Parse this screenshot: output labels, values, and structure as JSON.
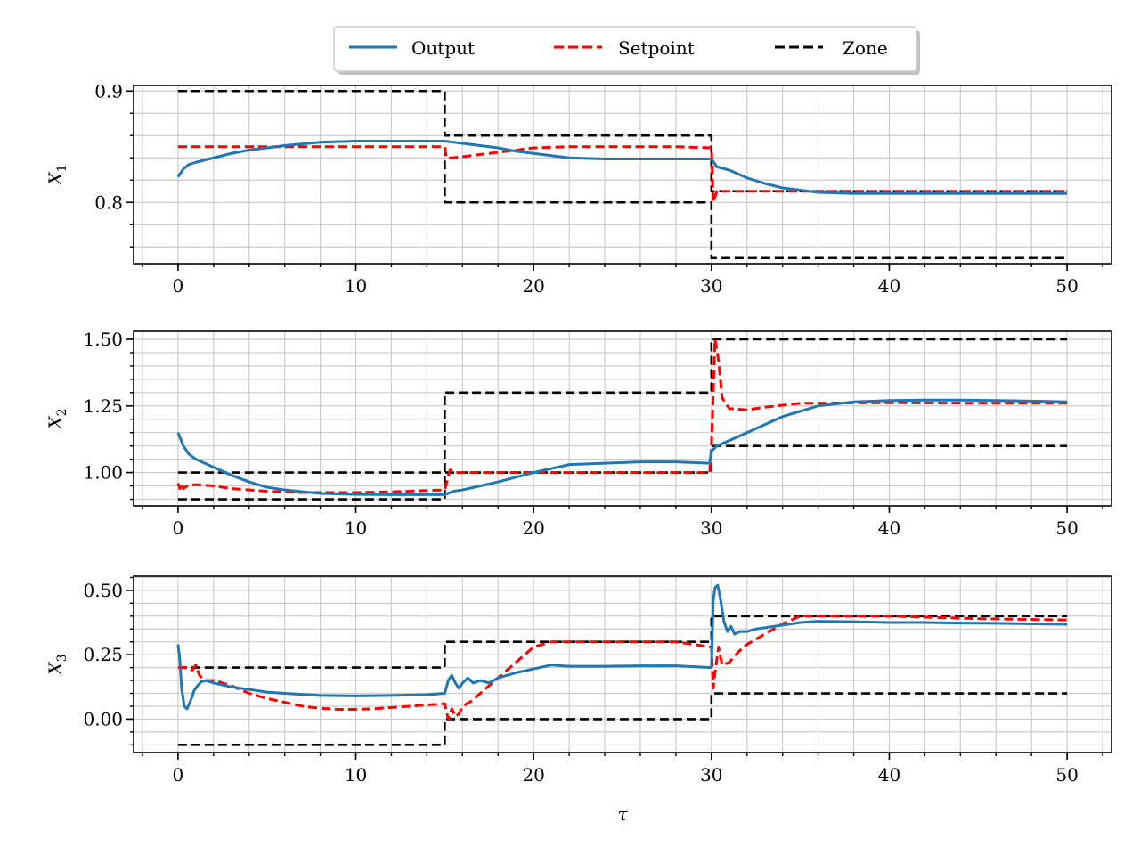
{
  "legend": {
    "placement": "top-center",
    "entries": [
      {
        "label": "Output",
        "color": "#1f77b4",
        "dash": "solid"
      },
      {
        "label": "Setpoint",
        "color": "#ff0000",
        "dash": "dashed"
      },
      {
        "label": "Zone",
        "color": "#000000",
        "dash": "dashed"
      }
    ]
  },
  "chart_data": [
    {
      "type": "line",
      "ylabel_base": "X",
      "ylabel_sub": "1",
      "xlabel": "",
      "xlim": [
        -2.5,
        52.5
      ],
      "ylim": [
        0.745,
        0.905
      ],
      "xticks": [
        0,
        10,
        20,
        30,
        40,
        50
      ],
      "xtick_labels": [
        "0",
        "10",
        "20",
        "30",
        "40",
        "50"
      ],
      "yticks": [
        0.8,
        0.9
      ],
      "ytick_labels": [
        "0.8",
        "0.9"
      ],
      "grid": true,
      "series": [
        {
          "name": "Output",
          "x": [
            0,
            0.3,
            0.6,
            1,
            2,
            3,
            4,
            5,
            6,
            8,
            10,
            12,
            14,
            15,
            15.5,
            16,
            17,
            18,
            19,
            20,
            21,
            22,
            24,
            26,
            28,
            30,
            30.3,
            31,
            32,
            33,
            34,
            35,
            36,
            38,
            40,
            42,
            44,
            46,
            48,
            50
          ],
          "y": [
            0.823,
            0.83,
            0.834,
            0.836,
            0.84,
            0.844,
            0.847,
            0.849,
            0.851,
            0.854,
            0.855,
            0.855,
            0.855,
            0.855,
            0.854,
            0.853,
            0.851,
            0.849,
            0.846,
            0.844,
            0.842,
            0.84,
            0.839,
            0.839,
            0.839,
            0.839,
            0.832,
            0.829,
            0.822,
            0.817,
            0.813,
            0.811,
            0.809,
            0.808,
            0.808,
            0.808,
            0.808,
            0.808,
            0.808,
            0.808
          ]
        },
        {
          "name": "Setpoint",
          "x": [
            0,
            15,
            15.1,
            15.4,
            16,
            18,
            20,
            22,
            24,
            26,
            28,
            30,
            30.1,
            30.3,
            31,
            35,
            40,
            45,
            50
          ],
          "y": [
            0.85,
            0.85,
            0.84,
            0.84,
            0.841,
            0.845,
            0.849,
            0.85,
            0.85,
            0.85,
            0.85,
            0.849,
            0.8,
            0.81,
            0.81,
            0.81,
            0.81,
            0.81,
            0.81
          ]
        },
        {
          "name": "Zone-upper",
          "x": [
            0,
            15,
            15,
            30,
            30,
            50
          ],
          "y": [
            0.9,
            0.9,
            0.86,
            0.86,
            0.81,
            0.81
          ]
        },
        {
          "name": "Zone-lower",
          "x": [
            0,
            15,
            15,
            30,
            30,
            50
          ],
          "y": [
            0.85,
            0.85,
            0.8,
            0.8,
            0.75,
            0.75
          ]
        }
      ]
    },
    {
      "type": "line",
      "ylabel_base": "X",
      "ylabel_sub": "2",
      "xlabel": "",
      "xlim": [
        -2.5,
        52.5
      ],
      "ylim": [
        0.875,
        1.53
      ],
      "xticks": [
        0,
        10,
        20,
        30,
        40,
        50
      ],
      "xtick_labels": [
        "0",
        "10",
        "20",
        "30",
        "40",
        "50"
      ],
      "yticks": [
        1.0,
        1.25,
        1.5
      ],
      "ytick_labels": [
        "1.00",
        "1.25",
        "1.50"
      ],
      "grid": true,
      "series": [
        {
          "name": "Output",
          "x": [
            0,
            0.3,
            0.6,
            1,
            1.5,
            2,
            3,
            4,
            5,
            6,
            7,
            8,
            10,
            12,
            14,
            15,
            15.5,
            16,
            18,
            20,
            22,
            24,
            26,
            28,
            29.9,
            30,
            30.3,
            31,
            32,
            33,
            34,
            35,
            36,
            38,
            40,
            42,
            44,
            46,
            48,
            50
          ],
          "y": [
            1.15,
            1.1,
            1.07,
            1.05,
            1.035,
            1.02,
            0.99,
            0.965,
            0.945,
            0.935,
            0.928,
            0.922,
            0.918,
            0.917,
            0.917,
            0.917,
            0.93,
            0.935,
            0.965,
            1.0,
            1.03,
            1.035,
            1.04,
            1.04,
            1.035,
            1.08,
            1.1,
            1.12,
            1.15,
            1.18,
            1.21,
            1.23,
            1.25,
            1.265,
            1.27,
            1.272,
            1.272,
            1.27,
            1.268,
            1.265
          ]
        },
        {
          "name": "Setpoint",
          "x": [
            0,
            0.1,
            0.2,
            0.3,
            0.5,
            1,
            2,
            3,
            5,
            7,
            10,
            12,
            15,
            15.3,
            15.6,
            20,
            25,
            29.9,
            30,
            30.2,
            30.4,
            30.6,
            31,
            32,
            33,
            35,
            40,
            45,
            50
          ],
          "y": [
            0.96,
            0.94,
            0.96,
            0.94,
            0.95,
            0.955,
            0.95,
            0.94,
            0.93,
            0.925,
            0.925,
            0.928,
            0.935,
            1.01,
            1.0,
            1.0,
            1.0,
            1.0,
            1.1,
            1.5,
            1.42,
            1.28,
            1.24,
            1.235,
            1.245,
            1.26,
            1.262,
            1.26,
            1.26
          ]
        },
        {
          "name": "Zone-upper",
          "x": [
            0,
            15,
            15,
            30,
            30,
            50
          ],
          "y": [
            1.0,
            1.0,
            1.3,
            1.3,
            1.5,
            1.5
          ]
        },
        {
          "name": "Zone-lower",
          "x": [
            0,
            15,
            15,
            30,
            30,
            50
          ],
          "y": [
            0.9,
            0.9,
            1.0,
            1.0,
            1.1,
            1.1
          ]
        }
      ]
    },
    {
      "type": "line",
      "ylabel_base": "X",
      "ylabel_sub": "3",
      "xlabel": "τ",
      "xlim": [
        -2.5,
        52.5
      ],
      "ylim": [
        -0.13,
        0.555
      ],
      "xticks": [
        0,
        10,
        20,
        30,
        40,
        50
      ],
      "xtick_labels": [
        "0",
        "10",
        "20",
        "30",
        "40",
        "50"
      ],
      "yticks": [
        0.0,
        0.25,
        0.5
      ],
      "ytick_labels": [
        "0.00",
        "0.25",
        "0.50"
      ],
      "grid": true,
      "series": [
        {
          "name": "Output",
          "x": [
            0,
            0.1,
            0.2,
            0.35,
            0.5,
            0.7,
            0.9,
            1.1,
            1.3,
            1.6,
            2,
            3,
            4,
            5,
            6,
            8,
            10,
            12,
            14,
            15,
            15.2,
            15.4,
            15.6,
            15.8,
            16,
            16.3,
            16.6,
            17,
            17.5,
            18,
            19,
            20,
            21,
            22,
            24,
            26,
            28,
            30,
            30.1,
            30.2,
            30.35,
            30.5,
            30.7,
            30.9,
            31.1,
            31.3,
            31.6,
            32,
            32.5,
            33,
            34,
            35,
            36,
            38,
            40,
            42,
            44,
            46,
            48,
            50
          ],
          "y": [
            0.29,
            0.23,
            0.12,
            0.05,
            0.04,
            0.07,
            0.11,
            0.13,
            0.145,
            0.15,
            0.14,
            0.125,
            0.115,
            0.105,
            0.1,
            0.092,
            0.09,
            0.092,
            0.095,
            0.1,
            0.15,
            0.17,
            0.14,
            0.12,
            0.14,
            0.16,
            0.14,
            0.15,
            0.14,
            0.16,
            0.18,
            0.195,
            0.21,
            0.205,
            0.205,
            0.207,
            0.207,
            0.2,
            0.46,
            0.51,
            0.52,
            0.47,
            0.38,
            0.34,
            0.36,
            0.33,
            0.34,
            0.34,
            0.35,
            0.355,
            0.365,
            0.375,
            0.38,
            0.378,
            0.375,
            0.375,
            0.373,
            0.372,
            0.37,
            0.368
          ]
        },
        {
          "name": "Setpoint",
          "x": [
            0,
            0.3,
            0.6,
            0.8,
            1,
            1.2,
            1.5,
            2,
            3,
            4,
            5,
            6,
            7,
            8,
            9,
            10,
            11,
            12,
            13,
            14,
            15,
            15.2,
            15.4,
            15.6,
            15.8,
            16,
            16.5,
            17,
            18,
            19,
            20,
            21,
            22,
            24,
            26,
            28,
            30,
            30.1,
            30.2,
            30.4,
            30.6,
            31,
            31.5,
            32,
            33,
            34,
            35,
            36,
            40,
            45,
            50
          ],
          "y": [
            0.2,
            0.2,
            0.2,
            0.19,
            0.21,
            0.17,
            0.15,
            0.15,
            0.13,
            0.1,
            0.08,
            0.065,
            0.05,
            0.042,
            0.038,
            0.038,
            0.04,
            0.045,
            0.05,
            0.055,
            0.06,
            0.0,
            0.04,
            0.01,
            0.02,
            0.05,
            0.07,
            0.1,
            0.16,
            0.22,
            0.28,
            0.3,
            0.3,
            0.3,
            0.3,
            0.3,
            0.28,
            0.12,
            0.18,
            0.28,
            0.21,
            0.22,
            0.26,
            0.29,
            0.33,
            0.37,
            0.4,
            0.4,
            0.4,
            0.39,
            0.385
          ]
        },
        {
          "name": "Zone-upper",
          "x": [
            0,
            15,
            15,
            30,
            30,
            50
          ],
          "y": [
            0.2,
            0.2,
            0.3,
            0.3,
            0.4,
            0.4
          ]
        },
        {
          "name": "Zone-lower",
          "x": [
            0,
            15,
            15,
            30,
            30,
            50
          ],
          "y": [
            -0.1,
            -0.1,
            0.0,
            0.0,
            0.1,
            0.1
          ]
        }
      ]
    }
  ]
}
